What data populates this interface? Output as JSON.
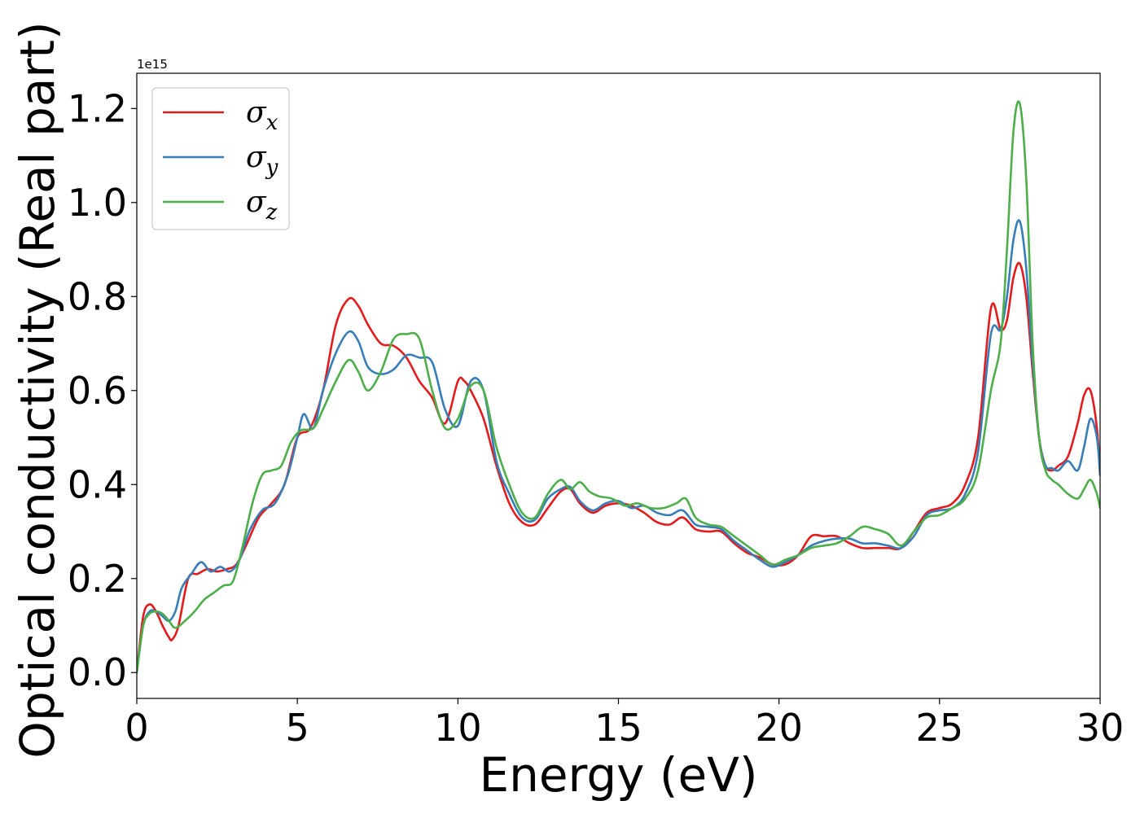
{
  "chart_data": {
    "type": "line",
    "xlabel": "Energy (eV)",
    "ylabel": "Optical conductivity (Real part)",
    "y_offset_text": "1e15",
    "xlim": [
      0,
      30
    ],
    "ylim": [
      -0.055,
      1.275
    ],
    "y_scale_factor": 1000000000000000.0,
    "x_ticks": [
      0,
      5,
      10,
      15,
      20,
      25,
      30
    ],
    "x_tick_labels": [
      "0",
      "5",
      "10",
      "15",
      "20",
      "25",
      "30"
    ],
    "y_ticks": [
      0.0,
      0.2,
      0.4,
      0.6,
      0.8,
      1.0,
      1.2
    ],
    "y_tick_labels": [
      "0.0",
      "0.2",
      "0.4",
      "0.6",
      "0.8",
      "1.0",
      "1.2"
    ],
    "grid": false,
    "legend_position": "top-left",
    "series": [
      {
        "name": "σ",
        "subscript": "x",
        "color": "#e41a1c",
        "x": [
          0,
          0.2,
          0.4,
          0.6,
          0.8,
          1.0,
          1.1,
          1.3,
          1.6,
          1.9,
          2.2,
          2.5,
          2.8,
          3.1,
          3.4,
          3.8,
          4.2,
          4.6,
          5.0,
          5.4,
          5.8,
          6.2,
          6.6,
          6.9,
          7.2,
          7.6,
          8.0,
          8.4,
          8.8,
          9.2,
          9.6,
          10.0,
          10.2,
          10.4,
          10.8,
          11.2,
          11.6,
          12.0,
          12.4,
          12.8,
          13.2,
          13.5,
          13.8,
          14.2,
          14.6,
          15.0,
          15.4,
          15.8,
          16.2,
          16.6,
          17.0,
          17.4,
          17.8,
          18.2,
          18.6,
          19.0,
          19.4,
          19.8,
          20.2,
          20.6,
          21.0,
          21.4,
          21.8,
          22.2,
          22.6,
          23.0,
          23.4,
          23.8,
          24.2,
          24.6,
          25.0,
          25.4,
          25.8,
          26.2,
          26.6,
          26.9,
          27.1,
          27.3,
          27.5,
          27.7,
          27.9,
          28.1,
          28.3,
          28.5,
          28.7,
          29.0,
          29.3,
          29.5,
          29.7,
          29.9,
          30.0
        ],
        "values": [
          0.0,
          0.12,
          0.145,
          0.13,
          0.1,
          0.075,
          0.07,
          0.1,
          0.2,
          0.21,
          0.22,
          0.215,
          0.22,
          0.23,
          0.27,
          0.33,
          0.36,
          0.4,
          0.5,
          0.52,
          0.6,
          0.74,
          0.795,
          0.78,
          0.74,
          0.7,
          0.695,
          0.67,
          0.62,
          0.585,
          0.53,
          0.62,
          0.62,
          0.6,
          0.54,
          0.44,
          0.36,
          0.32,
          0.315,
          0.35,
          0.385,
          0.39,
          0.36,
          0.34,
          0.355,
          0.36,
          0.355,
          0.34,
          0.32,
          0.315,
          0.33,
          0.305,
          0.3,
          0.3,
          0.275,
          0.255,
          0.245,
          0.23,
          0.23,
          0.25,
          0.29,
          0.29,
          0.29,
          0.275,
          0.265,
          0.265,
          0.265,
          0.265,
          0.3,
          0.34,
          0.35,
          0.36,
          0.4,
          0.5,
          0.775,
          0.73,
          0.75,
          0.84,
          0.87,
          0.8,
          0.64,
          0.5,
          0.44,
          0.43,
          0.44,
          0.46,
          0.53,
          0.59,
          0.6,
          0.52,
          0.42
        ]
      },
      {
        "name": "σ",
        "subscript": "y",
        "color": "#377eb8",
        "x": [
          0,
          0.2,
          0.4,
          0.6,
          0.8,
          1.0,
          1.2,
          1.4,
          1.7,
          2.0,
          2.3,
          2.6,
          2.9,
          3.2,
          3.5,
          3.9,
          4.3,
          4.7,
          5.0,
          5.2,
          5.5,
          5.8,
          6.2,
          6.6,
          6.9,
          7.2,
          7.6,
          8.0,
          8.4,
          8.8,
          9.2,
          9.6,
          10.0,
          10.4,
          10.8,
          11.2,
          11.6,
          12.0,
          12.4,
          12.8,
          13.2,
          13.5,
          13.8,
          14.2,
          14.6,
          15.0,
          15.4,
          15.8,
          16.2,
          16.6,
          17.0,
          17.4,
          17.8,
          18.2,
          18.6,
          19.0,
          19.4,
          19.8,
          20.2,
          20.6,
          21.0,
          21.4,
          21.8,
          22.2,
          22.6,
          23.0,
          23.4,
          23.8,
          24.2,
          24.6,
          25.0,
          25.4,
          25.8,
          26.2,
          26.6,
          26.9,
          27.1,
          27.3,
          27.5,
          27.7,
          27.9,
          28.1,
          28.3,
          28.5,
          28.7,
          29.0,
          29.3,
          29.5,
          29.7,
          29.9,
          30.0
        ],
        "values": [
          0.0,
          0.1,
          0.13,
          0.13,
          0.12,
          0.11,
          0.13,
          0.18,
          0.21,
          0.235,
          0.215,
          0.225,
          0.215,
          0.24,
          0.3,
          0.345,
          0.36,
          0.42,
          0.5,
          0.55,
          0.52,
          0.6,
          0.68,
          0.725,
          0.705,
          0.65,
          0.635,
          0.645,
          0.675,
          0.67,
          0.66,
          0.56,
          0.525,
          0.62,
          0.6,
          0.45,
          0.38,
          0.33,
          0.325,
          0.37,
          0.39,
          0.395,
          0.365,
          0.345,
          0.36,
          0.365,
          0.35,
          0.355,
          0.34,
          0.335,
          0.345,
          0.315,
          0.31,
          0.305,
          0.28,
          0.26,
          0.24,
          0.225,
          0.235,
          0.25,
          0.27,
          0.28,
          0.285,
          0.285,
          0.275,
          0.275,
          0.27,
          0.265,
          0.29,
          0.335,
          0.345,
          0.35,
          0.38,
          0.47,
          0.72,
          0.73,
          0.8,
          0.92,
          0.96,
          0.86,
          0.66,
          0.5,
          0.44,
          0.435,
          0.43,
          0.45,
          0.43,
          0.48,
          0.54,
          0.5,
          0.42
        ]
      },
      {
        "name": "σ",
        "subscript": "z",
        "color": "#4daf4a",
        "x": [
          0,
          0.2,
          0.4,
          0.6,
          0.8,
          1.0,
          1.2,
          1.5,
          1.8,
          2.1,
          2.4,
          2.7,
          3.0,
          3.3,
          3.6,
          3.9,
          4.2,
          4.5,
          4.8,
          5.1,
          5.5,
          5.8,
          6.2,
          6.6,
          6.9,
          7.2,
          7.6,
          8.0,
          8.4,
          8.8,
          9.2,
          9.6,
          10.0,
          10.4,
          10.8,
          11.2,
          11.6,
          12.0,
          12.4,
          12.8,
          13.2,
          13.5,
          13.8,
          14.1,
          14.4,
          14.8,
          15.2,
          15.6,
          16.0,
          16.4,
          16.8,
          17.1,
          17.4,
          17.8,
          18.2,
          18.6,
          19.0,
          19.4,
          19.8,
          20.2,
          20.6,
          21.0,
          21.4,
          21.8,
          22.2,
          22.6,
          23.0,
          23.4,
          23.8,
          24.2,
          24.6,
          25.0,
          25.4,
          25.8,
          26.2,
          26.6,
          26.9,
          27.1,
          27.3,
          27.5,
          27.7,
          27.9,
          28.1,
          28.3,
          28.5,
          28.7,
          29.0,
          29.3,
          29.5,
          29.7,
          29.9,
          30.0
        ],
        "values": [
          0.0,
          0.1,
          0.125,
          0.13,
          0.125,
          0.11,
          0.095,
          0.11,
          0.13,
          0.155,
          0.17,
          0.185,
          0.195,
          0.27,
          0.36,
          0.42,
          0.43,
          0.44,
          0.49,
          0.515,
          0.52,
          0.56,
          0.62,
          0.665,
          0.64,
          0.6,
          0.64,
          0.71,
          0.72,
          0.71,
          0.6,
          0.52,
          0.54,
          0.61,
          0.6,
          0.48,
          0.4,
          0.34,
          0.33,
          0.38,
          0.41,
          0.39,
          0.405,
          0.385,
          0.375,
          0.37,
          0.355,
          0.36,
          0.35,
          0.35,
          0.36,
          0.37,
          0.33,
          0.315,
          0.31,
          0.29,
          0.27,
          0.25,
          0.23,
          0.24,
          0.25,
          0.265,
          0.27,
          0.275,
          0.29,
          0.31,
          0.305,
          0.295,
          0.27,
          0.3,
          0.33,
          0.335,
          0.35,
          0.37,
          0.43,
          0.6,
          0.7,
          0.9,
          1.15,
          1.21,
          1.05,
          0.7,
          0.5,
          0.43,
          0.41,
          0.4,
          0.38,
          0.37,
          0.39,
          0.41,
          0.38,
          0.35
        ]
      }
    ]
  }
}
